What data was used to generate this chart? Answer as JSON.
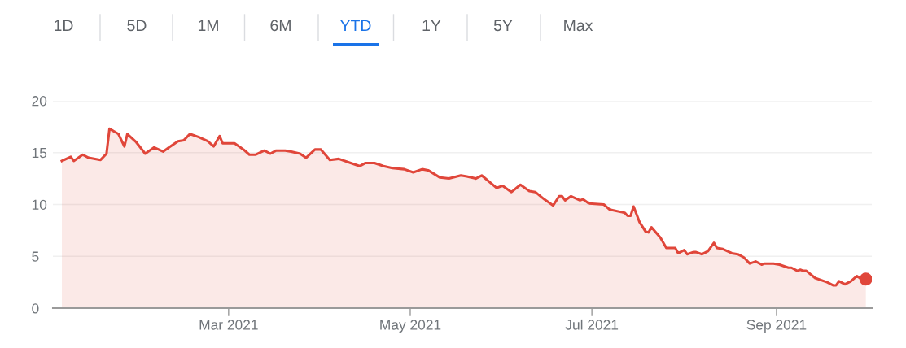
{
  "chart_data": {
    "type": "area",
    "annotations": [
      "1D",
      "5D",
      "1M",
      "6M",
      "YTD",
      "1Y",
      "5Y",
      "Max"
    ],
    "series": [
      {
        "color": "#e0463a",
        "x": [
          "2021-01-04",
          "2021-01-07",
          "2021-01-08",
          "2021-01-11",
          "2021-01-13",
          "2021-01-17",
          "2021-01-19",
          "2021-01-20",
          "2021-01-23",
          "2021-01-25",
          "2021-01-26",
          "2021-01-29",
          "2021-02-01",
          "2021-02-04",
          "2021-02-07",
          "2021-02-09",
          "2021-02-12",
          "2021-02-14",
          "2021-02-16",
          "2021-02-19",
          "2021-02-22",
          "2021-02-24",
          "2021-02-26",
          "2021-02-27",
          "2021-03-03",
          "2021-03-06",
          "2021-03-08",
          "2021-03-10",
          "2021-03-13",
          "2021-03-15",
          "2021-03-17",
          "2021-03-20",
          "2021-03-22",
          "2021-03-25",
          "2021-03-27",
          "2021-03-30",
          "2021-04-01",
          "2021-04-04",
          "2021-04-07",
          "2021-04-11",
          "2021-04-14",
          "2021-04-16",
          "2021-04-19",
          "2021-04-22",
          "2021-04-25",
          "2021-04-29",
          "2021-05-02",
          "2021-05-05",
          "2021-05-07",
          "2021-05-11",
          "2021-05-14",
          "2021-05-18",
          "2021-05-20",
          "2021-05-23",
          "2021-05-25",
          "2021-05-30",
          "2021-06-01",
          "2021-06-04",
          "2021-06-07",
          "2021-06-10",
          "2021-06-12",
          "2021-06-15",
          "2021-06-18",
          "2021-06-20",
          "2021-06-21",
          "2021-06-22",
          "2021-06-24",
          "2021-06-27",
          "2021-06-28",
          "2021-06-30",
          "2021-07-05",
          "2021-07-07",
          "2021-07-12",
          "2021-07-13",
          "2021-07-14",
          "2021-07-15",
          "2021-07-17",
          "2021-07-19",
          "2021-07-20",
          "2021-07-21",
          "2021-07-24",
          "2021-07-26",
          "2021-07-29",
          "2021-07-30",
          "2021-08-01",
          "2021-08-02",
          "2021-08-04",
          "2021-08-05",
          "2021-08-07",
          "2021-08-09",
          "2021-08-11",
          "2021-08-12",
          "2021-08-14",
          "2021-08-17",
          "2021-08-19",
          "2021-08-21",
          "2021-08-23",
          "2021-08-25",
          "2021-08-27",
          "2021-08-28",
          "2021-08-31",
          "2021-09-02",
          "2021-09-05",
          "2021-09-06",
          "2021-09-08",
          "2021-09-09",
          "2021-09-10",
          "2021-09-11",
          "2021-09-14",
          "2021-09-18",
          "2021-09-20",
          "2021-09-21",
          "2021-09-22",
          "2021-09-24",
          "2021-09-26",
          "2021-09-28",
          "2021-09-29",
          "2021-10-01"
        ],
        "values": [
          14.2,
          14.6,
          14.2,
          14.8,
          14.5,
          14.3,
          14.9,
          17.3,
          16.8,
          15.6,
          16.8,
          16.0,
          14.9,
          15.5,
          15.1,
          15.5,
          16.1,
          16.2,
          16.8,
          16.5,
          16.1,
          15.6,
          16.6,
          15.9,
          15.9,
          15.3,
          14.8,
          14.8,
          15.2,
          14.9,
          15.2,
          15.2,
          15.1,
          14.9,
          14.5,
          15.3,
          15.3,
          14.3,
          14.4,
          14.0,
          13.7,
          14.0,
          14.0,
          13.7,
          13.5,
          13.4,
          13.1,
          13.4,
          13.3,
          12.6,
          12.5,
          12.8,
          12.7,
          12.5,
          12.8,
          11.6,
          11.8,
          11.2,
          11.9,
          11.3,
          11.2,
          10.5,
          9.9,
          10.8,
          10.8,
          10.4,
          10.8,
          10.4,
          10.5,
          10.1,
          10.0,
          9.5,
          9.2,
          8.9,
          8.9,
          9.8,
          8.3,
          7.4,
          7.3,
          7.8,
          6.8,
          5.8,
          5.8,
          5.3,
          5.6,
          5.2,
          5.4,
          5.4,
          5.2,
          5.5,
          6.3,
          5.8,
          5.7,
          5.3,
          5.2,
          4.9,
          4.3,
          4.5,
          4.2,
          4.3,
          4.3,
          4.2,
          3.9,
          3.9,
          3.6,
          3.7,
          3.6,
          3.6,
          2.9,
          2.5,
          2.2,
          2.2,
          2.6,
          2.3,
          2.6,
          3.1,
          2.9,
          2.8
        ]
      },
      {
        "type": "scatter",
        "color": "#e0463a",
        "marker": "circle",
        "x": [
          "2021-10-01"
        ],
        "values": [
          2.8
        ]
      }
    ],
    "xlim": [
      "2021-01-01",
      "2021-10-03"
    ],
    "xticks": [
      {
        "value": "2021-03-01",
        "label": "Mar 2021"
      },
      {
        "value": "2021-05-01",
        "label": "May 2021"
      },
      {
        "value": "2021-07-01",
        "label": "Jul 2021"
      },
      {
        "value": "2021-09-01",
        "label": "Sep 2021"
      }
    ],
    "ylim": [
      0,
      20
    ],
    "yticks": [
      0,
      5,
      10,
      15,
      20
    ],
    "grid": "y"
  }
}
